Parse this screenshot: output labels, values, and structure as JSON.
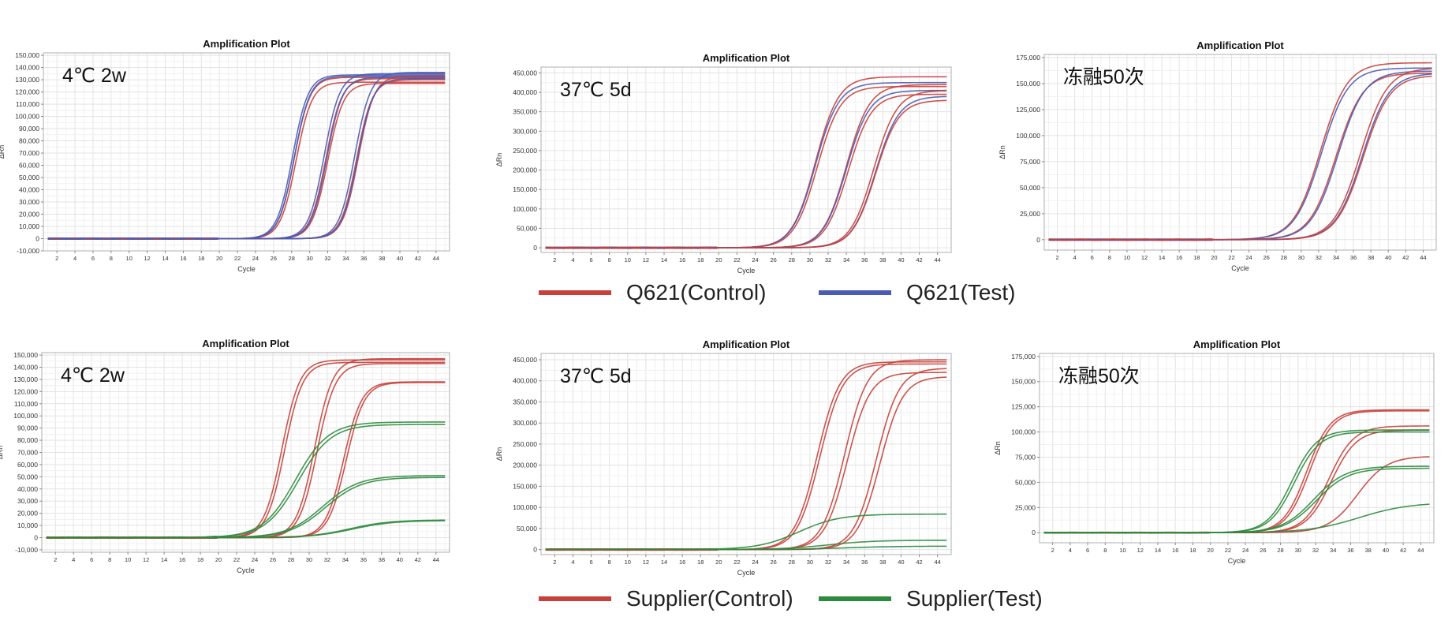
{
  "colors": {
    "control": "#C8403A",
    "q621_test": "#4A5BB5",
    "supplier_test": "#2E8B3E",
    "grid": "#E4E4E4",
    "frame": "#B0B0B0"
  },
  "legends": [
    {
      "id": "q621",
      "items": [
        {
          "label": "Q621(Control)",
          "color": "#C8403A"
        },
        {
          "label": "Q621(Test)",
          "color": "#4A5BB5"
        }
      ]
    },
    {
      "id": "supplier",
      "items": [
        {
          "label": "Supplier(Control)",
          "color": "#C8403A"
        },
        {
          "label": "Supplier(Test)",
          "color": "#2E8B3E"
        }
      ]
    }
  ],
  "chart_data": [
    {
      "type": "line",
      "title": "Amplification Plot",
      "condition": "4℃ 2w",
      "xlabel": "Cycle",
      "ylabel": "ΔRn",
      "xlim": [
        0.5,
        45.5
      ],
      "ylim": [
        -10000,
        152000
      ],
      "yticks": [
        -10000,
        0,
        10000,
        20000,
        30000,
        40000,
        50000,
        60000,
        70000,
        80000,
        90000,
        100000,
        110000,
        120000,
        130000,
        140000,
        150000
      ],
      "ytick_labels": [
        "-10,000",
        "0",
        "10,000",
        "20,000",
        "30,000",
        "40,000",
        "50,000",
        "60,000",
        "70,000",
        "80,000",
        "90,000",
        "100,000",
        "110,000",
        "120,000",
        "130,000",
        "140,000",
        "150,000"
      ],
      "xticks": [
        2,
        4,
        6,
        8,
        10,
        12,
        14,
        16,
        18,
        20,
        22,
        24,
        26,
        28,
        30,
        32,
        34,
        36,
        38,
        40,
        42,
        44
      ],
      "series": [
        {
          "name": "Q621(Control)",
          "color": "#C8403A",
          "plateau": 132000,
          "midpoint": 28.3,
          "slope": 1.15
        },
        {
          "name": "Q621(Control)",
          "color": "#C8403A",
          "plateau": 128000,
          "midpoint": 28.5,
          "slope": 1.15
        },
        {
          "name": "Q621(Test)",
          "color": "#4A5BB5",
          "plateau": 134000,
          "midpoint": 28.1,
          "slope": 1.15
        },
        {
          "name": "Q621(Test)",
          "color": "#4A5BB5",
          "plateau": 133000,
          "midpoint": 28.3,
          "slope": 1.15
        },
        {
          "name": "Q621(Control)",
          "color": "#C8403A",
          "plateau": 131000,
          "midpoint": 31.8,
          "slope": 1.15
        },
        {
          "name": "Q621(Control)",
          "color": "#C8403A",
          "plateau": 127000,
          "midpoint": 32.0,
          "slope": 1.15
        },
        {
          "name": "Q621(Test)",
          "color": "#4A5BB5",
          "plateau": 135000,
          "midpoint": 31.6,
          "slope": 1.15
        },
        {
          "name": "Q621(Test)",
          "color": "#4A5BB5",
          "plateau": 132000,
          "midpoint": 31.9,
          "slope": 1.15
        },
        {
          "name": "Q621(Control)",
          "color": "#C8403A",
          "plateau": 130000,
          "midpoint": 35.2,
          "slope": 1.15
        },
        {
          "name": "Q621(Control)",
          "color": "#C8403A",
          "plateau": 133000,
          "midpoint": 35.4,
          "slope": 1.15
        },
        {
          "name": "Q621(Test)",
          "color": "#4A5BB5",
          "plateau": 136000,
          "midpoint": 35.0,
          "slope": 1.15
        },
        {
          "name": "Q621(Test)",
          "color": "#4A5BB5",
          "plateau": 131000,
          "midpoint": 35.3,
          "slope": 1.15
        }
      ]
    },
    {
      "type": "line",
      "title": "Amplification Plot",
      "condition": "37℃ 5d",
      "xlabel": "Cycle",
      "ylabel": "ΔRn",
      "xlim": [
        0.5,
        45.5
      ],
      "ylim": [
        -12000,
        465000
      ],
      "yticks": [
        0,
        50000,
        100000,
        150000,
        200000,
        250000,
        300000,
        350000,
        400000,
        450000
      ],
      "ytick_labels": [
        "0",
        "50,000",
        "100,000",
        "150,000",
        "200,000",
        "250,000",
        "300,000",
        "350,000",
        "400,000",
        "450,000"
      ],
      "xticks": [
        2,
        4,
        6,
        8,
        10,
        12,
        14,
        16,
        18,
        20,
        22,
        24,
        26,
        28,
        30,
        32,
        34,
        36,
        38,
        40,
        42,
        44
      ],
      "series": [
        {
          "name": "Q621(Control)",
          "color": "#C8403A",
          "plateau": 440000,
          "midpoint": 30.6,
          "slope": 0.78
        },
        {
          "name": "Q621(Test)",
          "color": "#4A5BB5",
          "plateau": 425000,
          "midpoint": 30.6,
          "slope": 0.78
        },
        {
          "name": "Q621(Control)",
          "color": "#C8403A",
          "plateau": 415000,
          "midpoint": 30.8,
          "slope": 0.78
        },
        {
          "name": "Q621(Control)",
          "color": "#C8403A",
          "plateau": 420000,
          "midpoint": 34.0,
          "slope": 0.78
        },
        {
          "name": "Q621(Test)",
          "color": "#4A5BB5",
          "plateau": 405000,
          "midpoint": 34.0,
          "slope": 0.78
        },
        {
          "name": "Q621(Control)",
          "color": "#C8403A",
          "plateau": 395000,
          "midpoint": 34.2,
          "slope": 0.78
        },
        {
          "name": "Q621(Control)",
          "color": "#C8403A",
          "plateau": 405000,
          "midpoint": 37.0,
          "slope": 0.78
        },
        {
          "name": "Q621(Test)",
          "color": "#4A5BB5",
          "plateau": 390000,
          "midpoint": 37.2,
          "slope": 0.78
        },
        {
          "name": "Q621(Control)",
          "color": "#C8403A",
          "plateau": 380000,
          "midpoint": 37.2,
          "slope": 0.78
        }
      ]
    },
    {
      "type": "line",
      "title": "Amplification Plot",
      "condition": "冻融50次",
      "xlabel": "Cycle",
      "ylabel": "ΔRn",
      "xlim": [
        0.5,
        45.5
      ],
      "ylim": [
        -10000,
        178000
      ],
      "yticks": [
        0,
        25000,
        50000,
        75000,
        100000,
        125000,
        150000,
        175000
      ],
      "ytick_labels": [
        "0",
        "25,000",
        "50,000",
        "75,000",
        "100,000",
        "125,000",
        "150,000",
        "175,000"
      ],
      "xticks": [
        2,
        4,
        6,
        8,
        10,
        12,
        14,
        16,
        18,
        20,
        22,
        24,
        26,
        28,
        30,
        32,
        34,
        36,
        38,
        40,
        42,
        44
      ],
      "series": [
        {
          "name": "Q621(Control)",
          "color": "#C8403A",
          "plateau": 170000,
          "midpoint": 32.2,
          "slope": 0.65
        },
        {
          "name": "Q621(Test)",
          "color": "#4A5BB5",
          "plateau": 165000,
          "midpoint": 32.3,
          "slope": 0.65
        },
        {
          "name": "Q621(Control)",
          "color": "#C8403A",
          "plateau": 160000,
          "midpoint": 34.0,
          "slope": 0.65
        },
        {
          "name": "Q621(Test)",
          "color": "#4A5BB5",
          "plateau": 162000,
          "midpoint": 34.2,
          "slope": 0.65
        },
        {
          "name": "Q621(Control)",
          "color": "#C8403A",
          "plateau": 165000,
          "midpoint": 36.8,
          "slope": 0.65
        },
        {
          "name": "Q621(Test)",
          "color": "#4A5BB5",
          "plateau": 160000,
          "midpoint": 37.0,
          "slope": 0.65
        },
        {
          "name": "Q621(Control)",
          "color": "#C8403A",
          "plateau": 158000,
          "midpoint": 37.1,
          "slope": 0.65
        }
      ]
    },
    {
      "type": "line",
      "title": "Amplification Plot",
      "condition": "4℃ 2w",
      "xlabel": "Cycle",
      "ylabel": "ΔRn",
      "xlim": [
        0.5,
        45.5
      ],
      "ylim": [
        -12000,
        152000
      ],
      "yticks": [
        -10000,
        0,
        10000,
        20000,
        30000,
        40000,
        50000,
        60000,
        70000,
        80000,
        90000,
        100000,
        110000,
        120000,
        130000,
        140000,
        150000
      ],
      "ytick_labels": [
        "-10,000",
        "0",
        "10,000",
        "20,000",
        "30,000",
        "40,000",
        "50,000",
        "60,000",
        "70,000",
        "80,000",
        "90,000",
        "100,000",
        "110,000",
        "120,000",
        "130,000",
        "140,000",
        "150,000"
      ],
      "xticks": [
        2,
        4,
        6,
        8,
        10,
        12,
        14,
        16,
        18,
        20,
        22,
        24,
        26,
        28,
        30,
        32,
        34,
        36,
        38,
        40,
        42,
        44
      ],
      "series": [
        {
          "name": "Supplier(Control)",
          "color": "#C8403A",
          "plateau": 146000,
          "midpoint": 27.0,
          "slope": 1.0
        },
        {
          "name": "Supplier(Control)",
          "color": "#C8403A",
          "plateau": 144000,
          "midpoint": 27.3,
          "slope": 1.0
        },
        {
          "name": "Supplier(Control)",
          "color": "#C8403A",
          "plateau": 147000,
          "midpoint": 30.6,
          "slope": 1.0
        },
        {
          "name": "Supplier(Control)",
          "color": "#C8403A",
          "plateau": 143000,
          "midpoint": 30.9,
          "slope": 1.0
        },
        {
          "name": "Supplier(Control)",
          "color": "#C8403A",
          "plateau": 128000,
          "midpoint": 33.8,
          "slope": 1.0
        },
        {
          "name": "Supplier(Control)",
          "color": "#C8403A",
          "plateau": 127500,
          "midpoint": 34.1,
          "slope": 1.0
        },
        {
          "name": "Supplier(Test)",
          "color": "#2E8B3E",
          "plateau": 95000,
          "midpoint": 28.5,
          "slope": 0.55
        },
        {
          "name": "Supplier(Test)",
          "color": "#2E8B3E",
          "plateau": 93000,
          "midpoint": 28.8,
          "slope": 0.55
        },
        {
          "name": "Supplier(Test)",
          "color": "#2E8B3E",
          "plateau": 51000,
          "midpoint": 31.5,
          "slope": 0.5
        },
        {
          "name": "Supplier(Test)",
          "color": "#2E8B3E",
          "plateau": 49500,
          "midpoint": 31.8,
          "slope": 0.5
        },
        {
          "name": "Supplier(Test)",
          "color": "#2E8B3E",
          "plateau": 14500,
          "midpoint": 34.5,
          "slope": 0.45
        },
        {
          "name": "Supplier(Test)",
          "color": "#2E8B3E",
          "plateau": 14000,
          "midpoint": 34.8,
          "slope": 0.45
        }
      ]
    },
    {
      "type": "line",
      "title": "Amplification Plot",
      "condition": "37℃ 5d",
      "xlabel": "Cycle",
      "ylabel": "ΔRn",
      "xlim": [
        0.5,
        45.5
      ],
      "ylim": [
        -12000,
        465000
      ],
      "yticks": [
        0,
        50000,
        100000,
        150000,
        200000,
        250000,
        300000,
        350000,
        400000,
        450000
      ],
      "ytick_labels": [
        "0",
        "50,000",
        "100,000",
        "150,000",
        "200,000",
        "250,000",
        "300,000",
        "350,000",
        "400,000",
        "450,000"
      ],
      "xticks": [
        2,
        4,
        6,
        8,
        10,
        12,
        14,
        16,
        18,
        20,
        22,
        24,
        26,
        28,
        30,
        32,
        34,
        36,
        38,
        40,
        42,
        44
      ],
      "series": [
        {
          "name": "Supplier(Control)",
          "color": "#C8403A",
          "plateau": 445000,
          "midpoint": 30.8,
          "slope": 0.8
        },
        {
          "name": "Supplier(Control)",
          "color": "#C8403A",
          "plateau": 440000,
          "midpoint": 31.1,
          "slope": 0.8
        },
        {
          "name": "Supplier(Control)",
          "color": "#C8403A",
          "plateau": 450000,
          "midpoint": 33.8,
          "slope": 0.8
        },
        {
          "name": "Supplier(Control)",
          "color": "#C8403A",
          "plateau": 420000,
          "midpoint": 34.1,
          "slope": 0.8
        },
        {
          "name": "Supplier(Control)",
          "color": "#C8403A",
          "plateau": 430000,
          "midpoint": 37.3,
          "slope": 0.8
        },
        {
          "name": "Supplier(Control)",
          "color": "#C8403A",
          "plateau": 410000,
          "midpoint": 37.7,
          "slope": 0.8
        },
        {
          "name": "Supplier(Test)",
          "color": "#2E8B3E",
          "plateau": 84000,
          "midpoint": 28.8,
          "slope": 0.45
        },
        {
          "name": "Supplier(Test)",
          "color": "#2E8B3E",
          "plateau": 22000,
          "midpoint": 32.0,
          "slope": 0.4
        },
        {
          "name": "Supplier(Test)",
          "color": "#2E8B3E",
          "plateau": 8000,
          "midpoint": 34.0,
          "slope": 0.35
        }
      ]
    },
    {
      "type": "line",
      "title": "Amplification Plot",
      "condition": "冻融50次",
      "xlabel": "Cycle",
      "ylabel": "ΔRn",
      "xlim": [
        0.5,
        45.5
      ],
      "ylim": [
        -10000,
        178000
      ],
      "yticks": [
        0,
        25000,
        50000,
        75000,
        100000,
        125000,
        150000,
        175000
      ],
      "ytick_labels": [
        "0",
        "25,000",
        "50,000",
        "75,000",
        "100,000",
        "125,000",
        "150,000",
        "175,000"
      ],
      "xticks": [
        2,
        4,
        6,
        8,
        10,
        12,
        14,
        16,
        18,
        20,
        22,
        24,
        26,
        28,
        30,
        32,
        34,
        36,
        38,
        40,
        42,
        44
      ],
      "series": [
        {
          "name": "Supplier(Control)",
          "color": "#C8403A",
          "plateau": 122000,
          "midpoint": 31.0,
          "slope": 0.75
        },
        {
          "name": "Supplier(Control)",
          "color": "#C8403A",
          "plateau": 121000,
          "midpoint": 31.3,
          "slope": 0.75
        },
        {
          "name": "Supplier(Control)",
          "color": "#C8403A",
          "plateau": 106000,
          "midpoint": 33.5,
          "slope": 0.7
        },
        {
          "name": "Supplier(Control)",
          "color": "#C8403A",
          "plateau": 102000,
          "midpoint": 33.8,
          "slope": 0.7
        },
        {
          "name": "Supplier(Control)",
          "color": "#C8403A",
          "plateau": 76000,
          "midpoint": 36.8,
          "slope": 0.6
        },
        {
          "name": "Supplier(Test)",
          "color": "#2E8B3E",
          "plateau": 102000,
          "midpoint": 29.3,
          "slope": 0.7
        },
        {
          "name": "Supplier(Test)",
          "color": "#2E8B3E",
          "plateau": 100000,
          "midpoint": 29.6,
          "slope": 0.7
        },
        {
          "name": "Supplier(Test)",
          "color": "#2E8B3E",
          "plateau": 66000,
          "midpoint": 31.8,
          "slope": 0.55
        },
        {
          "name": "Supplier(Test)",
          "color": "#2E8B3E",
          "plateau": 64000,
          "midpoint": 32.1,
          "slope": 0.55
        },
        {
          "name": "Supplier(Test)",
          "color": "#2E8B3E",
          "plateau": 30000,
          "midpoint": 37.0,
          "slope": 0.35
        }
      ]
    }
  ]
}
